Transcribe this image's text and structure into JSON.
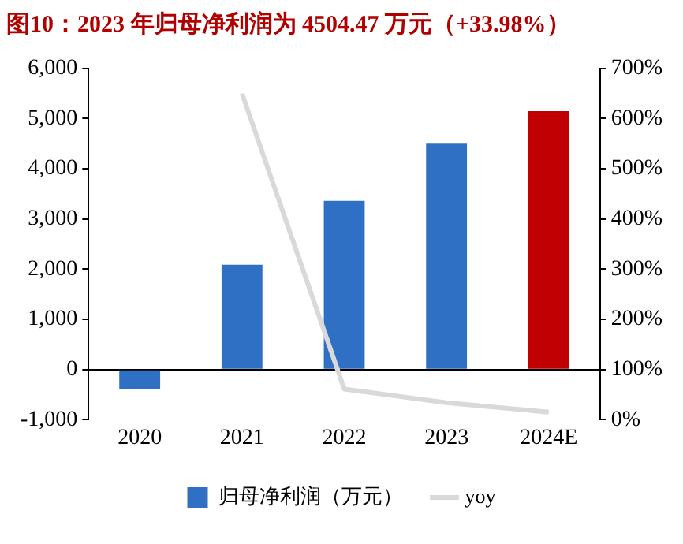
{
  "chart_data": {
    "type": "bar",
    "title": "图10：2023 年归母净利润为 4504.47 万元（+33.98%）",
    "categories": [
      "2020",
      "2021",
      "2022",
      "2023",
      "2024E"
    ],
    "series": [
      {
        "name": "归母净利润（万元）",
        "color": "#3070c4",
        "colors": [
          "#3070c4",
          "#3070c4",
          "#3070c4",
          "#3070c4",
          "#c00000"
        ],
        "values": [
          -380,
          2090,
          3360,
          4500,
          5150
        ]
      },
      {
        "name": "yoy",
        "type": "line",
        "axis": "y2",
        "color": "#d9d9d9",
        "values": [
          null,
          650,
          61,
          34,
          15
        ]
      }
    ],
    "ylim": [
      -1000,
      6000
    ],
    "yticks": [
      {
        "value": -1000,
        "label": "-1,000"
      },
      0,
      {
        "value": 1000,
        "label": "1,000"
      },
      {
        "value": 2000,
        "label": "2,000"
      },
      {
        "value": 3000,
        "label": "3,000"
      },
      {
        "value": 4000,
        "label": "4,000"
      },
      {
        "value": 5000,
        "label": "5,000"
      },
      {
        "value": 6000,
        "label": "6,000"
      }
    ],
    "y2lim": [
      0,
      700
    ],
    "y2ticks": [
      {
        "value": 0,
        "label": "0%"
      },
      {
        "value": 100,
        "label": "100%"
      },
      {
        "value": 200,
        "label": "200%"
      },
      {
        "value": 300,
        "label": "300%"
      },
      {
        "value": 400,
        "label": "400%"
      },
      {
        "value": 500,
        "label": "500%"
      },
      {
        "value": 600,
        "label": "600%"
      },
      {
        "value": 700,
        "label": "700%"
      }
    ],
    "legend": "bottom",
    "grid": false,
    "marker": "none"
  }
}
